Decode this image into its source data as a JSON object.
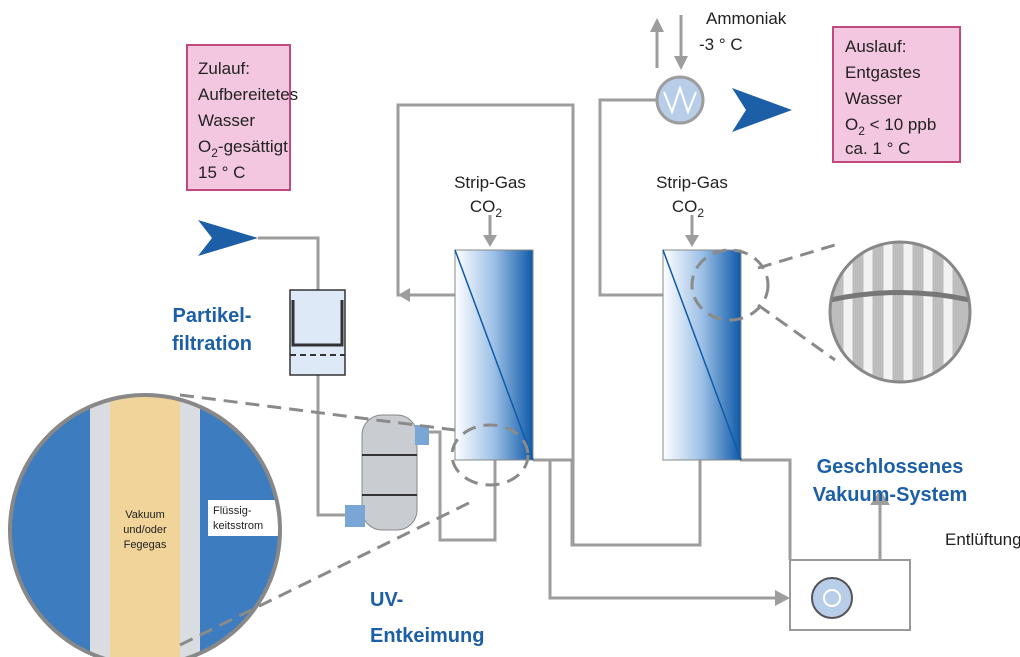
{
  "inlet_box": {
    "lines": [
      "Zulauf:",
      "Aufbereitetes",
      "Wasser"
    ],
    "o2": {
      "main": "O",
      "sub": "2",
      "rest": "-gesättigt"
    },
    "temp": "15 ° C"
  },
  "outlet_box": {
    "lines": [
      "Auslauf:",
      "Entgastes",
      "Wasser"
    ],
    "o2": {
      "main": "O",
      "sub": "2",
      "rest": " < 10 ppb"
    },
    "temp": "ca. 1 ° C"
  },
  "coolant": {
    "name": "Ammoniak",
    "temp": "-3 ° C"
  },
  "column_1": {
    "gas": "Strip-Gas",
    "co2": {
      "main": "CO",
      "sub": "2"
    }
  },
  "column_2": {
    "gas": "Strip-Gas",
    "co2": {
      "main": "CO",
      "sub": "2"
    }
  },
  "filtration": [
    "Partikel-",
    "filtration"
  ],
  "uv": [
    "UV-",
    "Entkeimung"
  ],
  "vacuum_system": [
    "Geschlossenes",
    "Vakuum-System"
  ],
  "vent": "Entlüftung",
  "zoom": {
    "membrane_side": [
      "Vakuum",
      "und/oder",
      "Fegegas"
    ],
    "liquid_side": [
      "Flüssig-",
      "keitsstrom"
    ]
  }
}
